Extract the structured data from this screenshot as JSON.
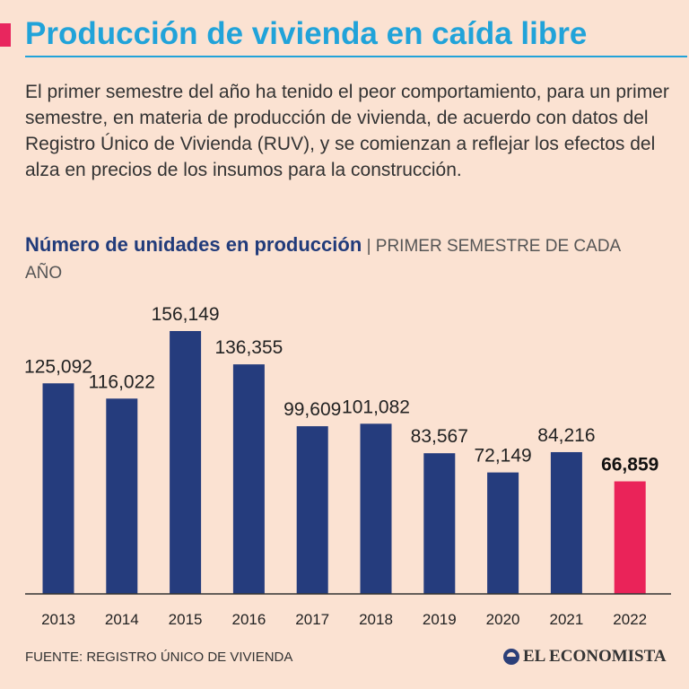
{
  "header": {
    "title": "Producción de vivienda en caída libre",
    "intro": "El primer semestre del año ha tenido el peor comportamiento, para un primer semestre, en materia de producción de vivienda, de acuerdo con datos del Registro Único de Vivienda (RUV), y se comienzan a reflejar los efectos del alza en precios de los insumos para la construcción."
  },
  "chart_data": {
    "type": "bar",
    "title": "Número de unidades en producción",
    "separator": "|",
    "subtitle": "PRIMER SEMESTRE DE CADA AÑO",
    "categories": [
      "2013",
      "2014",
      "2015",
      "2016",
      "2017",
      "2018",
      "2019",
      "2020",
      "2021",
      "2022"
    ],
    "values": [
      125092,
      116022,
      156149,
      136355,
      99609,
      101082,
      83567,
      72149,
      84216,
      66859
    ],
    "labels": [
      "125,092",
      "116,022",
      "156,149",
      "136,355",
      "99,609",
      "101,082",
      "83,567",
      "72,149",
      "84,216",
      "66,859"
    ],
    "highlight_index": 9,
    "ylim": [
      0,
      156149
    ],
    "xlabel": "",
    "ylabel": "",
    "grid": false,
    "colors": {
      "bar": "#253c7d",
      "highlight": "#ea2359",
      "axis": "#333333"
    }
  },
  "footer": {
    "source": "FUENTE: REGISTRO ÚNICO DE VIVIENDA",
    "logo": "EL ECONOMISTA"
  }
}
